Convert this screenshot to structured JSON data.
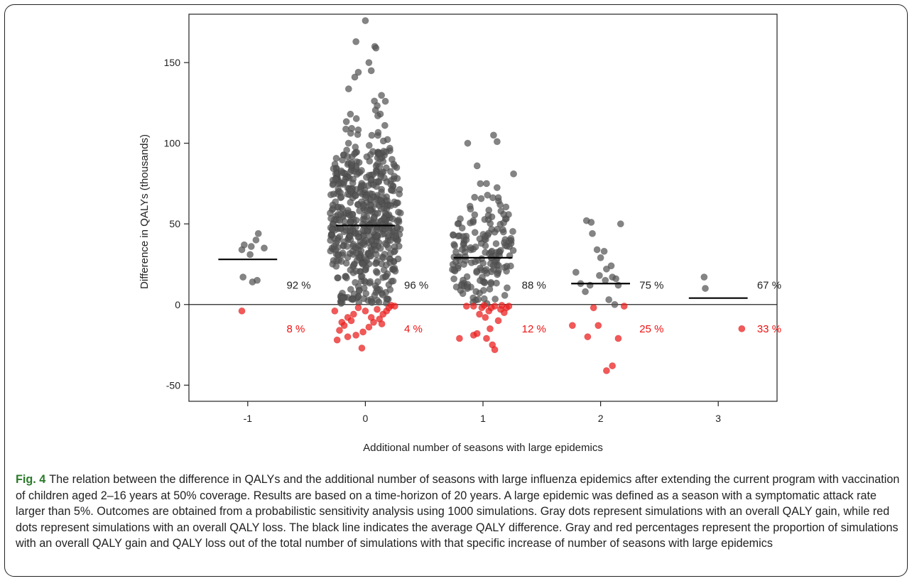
{
  "figure": {
    "label": "Fig. 4",
    "caption": "The relation between the difference in QALYs and the additional number of seasons with large influenza epidemics after extending the current program with vaccination of children aged 2–16 years at 50% coverage. Results are based on a time-horizon of 20 years. A large epidemic was defined as a season with a symptomatic attack rate larger than 5%. Outcomes are obtained from a probabilistic sensitivity analysis using 1000 simulations. Gray dots represent simulations with an overall QALY gain, while red dots represent simulations with an overall QALY loss. The black line indicates the average QALY difference. Gray and red percentages represent the proportion of simulations with an overall QALY gain and QALY loss out of the total number of simulations with that specific increase of number of seasons with large epidemics"
  },
  "chart_data": {
    "type": "scatter",
    "xlabel": "Additional number of seasons with large epidemics",
    "ylabel": "Difference in QALYs (thousands)",
    "xlim": [
      -1.5,
      3.5
    ],
    "ylim": [
      -60,
      180
    ],
    "xticks": [
      -1,
      0,
      1,
      2,
      3
    ],
    "xtick_labels": [
      "-1",
      "0",
      "1",
      "2",
      "3"
    ],
    "yticks": [
      -50,
      0,
      50,
      100,
      150
    ],
    "ytick_labels": [
      "-50",
      "0",
      "50",
      "100",
      "150"
    ],
    "reference_line_y": 0,
    "colors": {
      "gain": "#555555",
      "loss": "#ee2222",
      "mean": "#000000",
      "gain_label": "#222222",
      "loss_label": "#ee1111"
    },
    "groups": [
      {
        "x": -1,
        "mean": 28,
        "gain_pct": "92 %",
        "loss_pct": "8 %",
        "gain_points": [
          [
            -1.05,
            34
          ],
          [
            -1.03,
            37
          ],
          [
            -0.97,
            36
          ],
          [
            -0.93,
            40
          ],
          [
            -0.91,
            44
          ],
          [
            -0.86,
            35
          ],
          [
            -0.98,
            31
          ],
          [
            -1.04,
            17
          ],
          [
            -0.96,
            14
          ],
          [
            -0.92,
            15
          ]
        ],
        "loss_points": [
          [
            -1.05,
            -4
          ]
        ]
      },
      {
        "x": 0,
        "mean": 49,
        "gain_pct": "96 %",
        "loss_pct": "4 %",
        "gain_points": [
          [
            0.0,
            176
          ],
          [
            -0.08,
            163
          ],
          [
            0.08,
            160
          ],
          [
            0.09,
            159
          ],
          [
            0.05,
            145
          ],
          [
            -0.09,
            141
          ],
          [
            -0.06,
            144
          ],
          [
            0.03,
            150
          ]
        ],
        "gain_cloud": {
          "n": 580,
          "mean": 52,
          "sd": 28,
          "min": 0.5,
          "max": 135,
          "spread": 0.3
        },
        "loss_points": [
          [
            -0.15,
            -8
          ],
          [
            -0.12,
            -10
          ],
          [
            -0.2,
            -11
          ],
          [
            -0.18,
            -13
          ],
          [
            -0.22,
            -16
          ],
          [
            -0.24,
            -22
          ],
          [
            -0.15,
            -20
          ],
          [
            -0.08,
            -19
          ],
          [
            -0.02,
            -17
          ],
          [
            0.03,
            -14
          ],
          [
            0.07,
            -11
          ],
          [
            0.12,
            -9
          ],
          [
            0.15,
            -6
          ],
          [
            0.18,
            -4
          ],
          [
            0.2,
            -2
          ],
          [
            0.22,
            -0.5
          ],
          [
            -0.06,
            -2
          ],
          [
            0.0,
            -4
          ],
          [
            0.1,
            -3
          ],
          [
            -0.03,
            -27
          ],
          [
            0.05,
            -8
          ],
          [
            -0.1,
            -6
          ],
          [
            -0.26,
            -4
          ],
          [
            0.25,
            -1
          ],
          [
            0.14,
            -12
          ]
        ]
      },
      {
        "x": 1,
        "mean": 29,
        "gain_pct": "88 %",
        "loss_pct": "12 %",
        "gain_points": [
          [
            1.09,
            105
          ],
          [
            0.87,
            100
          ],
          [
            1.12,
            101
          ],
          [
            0.95,
            86
          ],
          [
            1.26,
            81
          ],
          [
            1.03,
            75
          ]
        ],
        "gain_cloud": {
          "n": 170,
          "mean": 32,
          "sd": 18,
          "min": 0.5,
          "max": 75,
          "spread": 0.26
        },
        "loss_points": [
          [
            0.8,
            -21
          ],
          [
            0.92,
            -19
          ],
          [
            0.95,
            -18
          ],
          [
            1.03,
            -21
          ],
          [
            1.08,
            -25
          ],
          [
            1.1,
            -28
          ],
          [
            1.06,
            -15
          ],
          [
            1.13,
            -10
          ],
          [
            1.02,
            -8
          ],
          [
            0.97,
            -6
          ],
          [
            1.18,
            -5
          ],
          [
            1.15,
            -3
          ],
          [
            1.2,
            -2
          ],
          [
            1.05,
            -4
          ],
          [
            0.99,
            -2
          ],
          [
            1.01,
            -0.5
          ],
          [
            0.92,
            -1
          ],
          [
            1.1,
            -1
          ],
          [
            1.16,
            -0.5
          ],
          [
            0.86,
            -1
          ],
          [
            1.07,
            -2
          ],
          [
            1.22,
            -1
          ]
        ]
      },
      {
        "x": 2,
        "mean": 13,
        "gain_pct": "75 %",
        "loss_pct": "25 %",
        "gain_points": [
          [
            1.88,
            52
          ],
          [
            1.92,
            51
          ],
          [
            1.93,
            44
          ],
          [
            1.97,
            34
          ],
          [
            2.0,
            29
          ],
          [
            2.03,
            33
          ],
          [
            2.05,
            22
          ],
          [
            2.1,
            17
          ],
          [
            2.13,
            16
          ],
          [
            2.15,
            12
          ],
          [
            2.17,
            50
          ],
          [
            1.79,
            20
          ],
          [
            1.83,
            13
          ],
          [
            1.87,
            8
          ],
          [
            1.91,
            12
          ],
          [
            1.99,
            18
          ],
          [
            2.04,
            15
          ],
          [
            2.09,
            24
          ],
          [
            2.12,
            0
          ],
          [
            2.07,
            3
          ]
        ],
        "loss_points": [
          [
            1.76,
            -13
          ],
          [
            1.89,
            -20
          ],
          [
            1.94,
            -2
          ],
          [
            1.98,
            -13
          ],
          [
            2.05,
            -41
          ],
          [
            2.1,
            -38
          ],
          [
            2.15,
            -21
          ],
          [
            2.2,
            -1
          ]
        ]
      },
      {
        "x": 3,
        "mean": 4,
        "gain_pct": "67 %",
        "loss_pct": "33 %",
        "gain_points": [
          [
            2.88,
            17
          ],
          [
            2.89,
            10
          ]
        ],
        "loss_points": [
          [
            3.2,
            -15
          ]
        ]
      }
    ]
  }
}
